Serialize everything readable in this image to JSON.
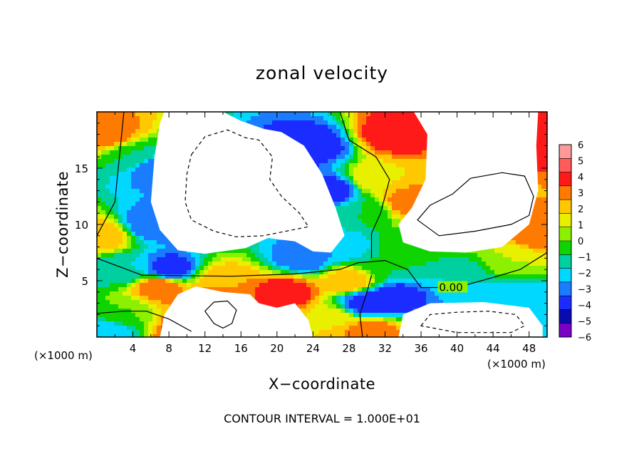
{
  "chart_data": {
    "type": "heatmap",
    "title": "zonal velocity",
    "xlabel": "X−coordinate",
    "ylabel": "Z−coordinate",
    "x_unit_left": "(×1000 m)",
    "x_unit_right": "(×1000 m)",
    "footer": "CONTOUR INTERVAL = 1.000E+01",
    "contour_label": "0.00",
    "xlim": [
      0,
      50
    ],
    "ylim": [
      0,
      20
    ],
    "x_ticks": [
      "4",
      "8",
      "12",
      "16",
      "20",
      "24",
      "28",
      "32",
      "36",
      "40",
      "44",
      "48"
    ],
    "y_ticks": [
      "5",
      "10",
      "15"
    ],
    "colorbar": {
      "levels": [
        "6",
        "5",
        "4",
        "3",
        "2",
        "1",
        "0",
        "−1",
        "−2",
        "−3",
        "−4",
        "−5",
        "−6"
      ],
      "colors": [
        "#ff9a9a",
        "#ff5c5c",
        "#ff1a1a",
        "#ff7a00",
        "#ffc800",
        "#e8f000",
        "#8cf000",
        "#10d400",
        "#00d0a0",
        "#00d8ff",
        "#1a7cff",
        "#1a2cff",
        "#0a0ab0",
        "#7a00c8"
      ]
    },
    "fields": {
      "blobs": [
        {
          "x": 1,
          "y": 18,
          "v": 4
        },
        {
          "x": 4,
          "y": 16,
          "v": -1
        },
        {
          "x": 6.5,
          "y": 15,
          "v": -4
        },
        {
          "x": 6,
          "y": 10,
          "v": -4
        },
        {
          "x": 8,
          "y": 6,
          "v": -5
        },
        {
          "x": 3,
          "y": 6,
          "v": -2
        },
        {
          "x": 0.5,
          "y": 9,
          "v": 3
        },
        {
          "x": 24,
          "y": 17,
          "v": -5
        },
        {
          "x": 26,
          "y": 13,
          "v": -5
        },
        {
          "x": 23,
          "y": 7,
          "v": -4
        },
        {
          "x": 27,
          "y": 8,
          "v": -3
        },
        {
          "x": 29.5,
          "y": 11,
          "v": -1
        },
        {
          "x": 31,
          "y": 14,
          "v": 2
        },
        {
          "x": 33,
          "y": 18,
          "v": 5
        },
        {
          "x": 35,
          "y": 12,
          "v": 4
        },
        {
          "x": 35,
          "y": 8,
          "v": 0
        },
        {
          "x": 40,
          "y": 5.5,
          "v": -2
        },
        {
          "x": 46,
          "y": 7,
          "v": 1
        },
        {
          "x": 49,
          "y": 9,
          "v": 4
        },
        {
          "x": 49,
          "y": 18,
          "v": 5
        },
        {
          "x": 30,
          "y": 3,
          "v": -5
        },
        {
          "x": 33,
          "y": 3.5,
          "v": -5
        },
        {
          "x": 28,
          "y": 5,
          "v": 3
        },
        {
          "x": 32,
          "y": 6.5,
          "v": -1
        },
        {
          "x": 7,
          "y": 4.5,
          "v": 4
        },
        {
          "x": 14,
          "y": 5,
          "v": 3
        },
        {
          "x": 21,
          "y": 4,
          "v": 5
        },
        {
          "x": 3,
          "y": 2,
          "v": 0
        },
        {
          "x": 12,
          "y": 3,
          "v": 4
        },
        {
          "x": 26,
          "y": 1.5,
          "v": 2
        },
        {
          "x": 30.5,
          "y": 0.5,
          "v": 4
        },
        {
          "x": 44,
          "y": 3,
          "v": -3
        },
        {
          "x": 49,
          "y": 3,
          "v": -3
        },
        {
          "x": 10,
          "y": 0.5,
          "v": 5
        },
        {
          "x": 1,
          "y": 0.5,
          "v": -3
        }
      ],
      "white_regions": [
        {
          "points": [
            [
              7.5,
              20
            ],
            [
              14,
              20
            ],
            [
              16,
              19.2
            ],
            [
              18.5,
              18.5
            ],
            [
              20.5,
              18.2
            ],
            [
              23,
              17
            ],
            [
              25,
              14.5
            ],
            [
              26.5,
              11.5
            ],
            [
              27.5,
              9
            ],
            [
              26,
              7.5
            ],
            [
              24,
              7.6
            ],
            [
              22,
              8.5
            ],
            [
              19,
              8.8
            ],
            [
              16.5,
              7.9
            ],
            [
              12,
              7.4
            ],
            [
              9,
              7.7
            ],
            [
              7,
              9.5
            ],
            [
              6,
              12
            ],
            [
              6.4,
              16
            ],
            [
              7,
              19
            ]
          ]
        },
        {
          "points": [
            [
              35.2,
              20
            ],
            [
              49,
              20
            ],
            [
              48.8,
              17
            ],
            [
              49,
              13
            ],
            [
              48,
              10
            ],
            [
              45,
              8
            ],
            [
              41,
              7.5
            ],
            [
              37,
              7.6
            ],
            [
              34,
              8.4
            ],
            [
              33.5,
              10
            ],
            [
              35,
              11.5
            ],
            [
              36.5,
              14
            ],
            [
              36.7,
              18
            ]
          ]
        },
        {
          "points": [
            [
              7,
              0
            ],
            [
              7.5,
              2
            ],
            [
              9,
              3.8
            ],
            [
              11,
              4.5
            ],
            [
              14,
              4
            ],
            [
              17,
              3.8
            ],
            [
              18,
              3
            ],
            [
              20,
              2.6
            ],
            [
              22,
              3
            ],
            [
              23.5,
              1.5
            ],
            [
              24,
              0
            ]
          ]
        },
        {
          "points": [
            [
              33.5,
              0
            ],
            [
              34,
              2
            ],
            [
              37,
              3
            ],
            [
              43,
              3.1
            ],
            [
              48,
              2.6
            ],
            [
              49.5,
              1
            ],
            [
              49.5,
              0
            ]
          ]
        }
      ]
    },
    "contours": [
      {
        "style": "solid",
        "points": [
          [
            3,
            20
          ],
          [
            2.5,
            16
          ],
          [
            2,
            12
          ],
          [
            0,
            9
          ]
        ]
      },
      {
        "style": "solid",
        "points": [
          [
            0,
            7
          ],
          [
            5,
            5.5
          ],
          [
            15,
            5.4
          ],
          [
            22,
            5.6
          ],
          [
            27,
            6
          ],
          [
            29,
            6.6
          ],
          [
            32,
            6.8
          ],
          [
            34.5,
            6
          ],
          [
            36,
            4.4
          ],
          [
            40,
            4.4
          ],
          [
            44,
            5.3
          ],
          [
            47,
            6
          ],
          [
            50,
            7.5
          ]
        ]
      },
      {
        "style": "solid",
        "points": [
          [
            27,
            20
          ],
          [
            28,
            17.5
          ],
          [
            31,
            16
          ],
          [
            32.5,
            14
          ],
          [
            31.5,
            11
          ],
          [
            30.5,
            9.2
          ],
          [
            30.5,
            7
          ]
        ]
      },
      {
        "style": "solid",
        "points": [
          [
            0,
            2.1
          ],
          [
            3,
            2.3
          ],
          [
            5.5,
            2.3
          ],
          [
            8,
            1.6
          ],
          [
            10.5,
            0.5
          ]
        ]
      },
      {
        "style": "solid",
        "points": [
          [
            30.5,
            5.5
          ],
          [
            30,
            4
          ],
          [
            29.2,
            2
          ],
          [
            29.5,
            0
          ]
        ]
      },
      {
        "style": "solid",
        "closed": true,
        "points": [
          [
            38,
            9
          ],
          [
            42,
            9.4
          ],
          [
            46,
            10
          ],
          [
            48,
            10.8
          ],
          [
            48.5,
            12.5
          ],
          [
            47.5,
            14.3
          ],
          [
            45,
            14.6
          ],
          [
            41.5,
            14.1
          ],
          [
            39.5,
            12.7
          ],
          [
            37,
            11.7
          ],
          [
            35.6,
            10.4
          ]
        ]
      },
      {
        "style": "solid",
        "closed": true,
        "points": [
          [
            12,
            2.3
          ],
          [
            13,
            3.1
          ],
          [
            14.5,
            3.2
          ],
          [
            15.5,
            2.4
          ],
          [
            15,
            1.2
          ],
          [
            14,
            0.8
          ],
          [
            13,
            1.2
          ]
        ]
      },
      {
        "style": "dashed",
        "closed": true,
        "points": [
          [
            10.5,
            16.2
          ],
          [
            12,
            17.8
          ],
          [
            14.5,
            18.4
          ],
          [
            16.5,
            17.7
          ],
          [
            18,
            17.5
          ],
          [
            19.5,
            16
          ],
          [
            19.2,
            14
          ],
          [
            20.5,
            12.5
          ],
          [
            22.5,
            11
          ],
          [
            23.5,
            9.8
          ],
          [
            21,
            9.4
          ],
          [
            18.5,
            9
          ],
          [
            15.5,
            8.9
          ],
          [
            13,
            9.4
          ],
          [
            10.5,
            10.4
          ],
          [
            9.8,
            12
          ],
          [
            10,
            14.5
          ]
        ]
      },
      {
        "style": "dashed",
        "closed": true,
        "points": [
          [
            36,
            1
          ],
          [
            37,
            2
          ],
          [
            40,
            2.2
          ],
          [
            43.5,
            2.3
          ],
          [
            46.5,
            2
          ],
          [
            47.5,
            1
          ],
          [
            46,
            0.4
          ],
          [
            40,
            0.4
          ]
        ]
      }
    ]
  }
}
